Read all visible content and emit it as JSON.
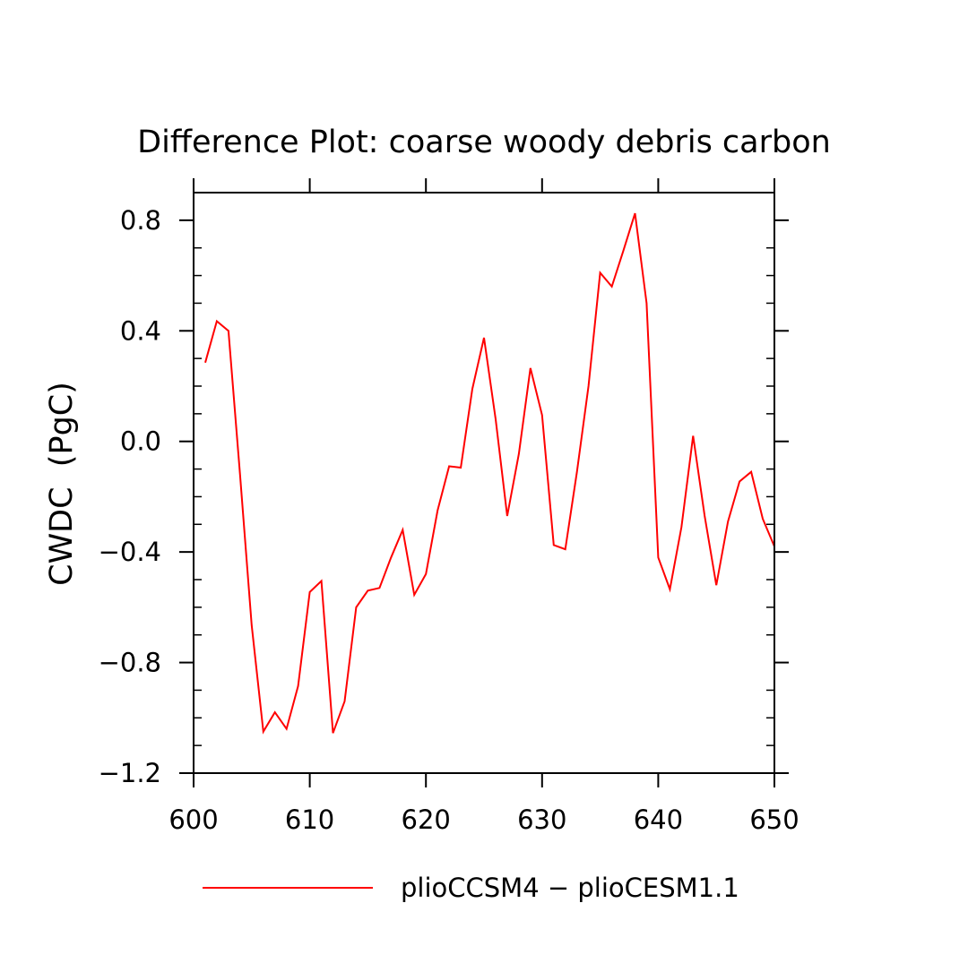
{
  "chart_data": {
    "type": "line",
    "title": "Difference Plot: coarse woody debris carbon",
    "xlabel": "",
    "ylabel": "CWDC  (PgC)",
    "xlim": [
      600,
      650
    ],
    "ylim": [
      -1.2,
      0.9
    ],
    "x_ticks": [
      600,
      610,
      620,
      630,
      640,
      650
    ],
    "x_tick_labels": [
      "600",
      "610",
      "620",
      "630",
      "640",
      "650"
    ],
    "y_ticks": [
      -1.2,
      -0.8,
      -0.4,
      0.0,
      0.4,
      0.8
    ],
    "y_tick_labels": [
      "−1.2",
      "−0.8",
      "−0.4",
      "0.0",
      "0.4",
      "0.8"
    ],
    "grid": false,
    "legend_position": "bottom",
    "series": [
      {
        "name": "plioCCSM4 − plioCESM1.1",
        "color": "#ff0000",
        "x": [
          601,
          602,
          603,
          604,
          605,
          606,
          607,
          608,
          609,
          610,
          611,
          612,
          613,
          614,
          615,
          616,
          617,
          618,
          619,
          620,
          621,
          622,
          623,
          624,
          625,
          626,
          627,
          628,
          629,
          630,
          631,
          632,
          633,
          634,
          635,
          636,
          637,
          638,
          639,
          640,
          641,
          642,
          643,
          644,
          645,
          646,
          647,
          648,
          649,
          650
        ],
        "y": [
          0.285,
          0.435,
          0.4,
          -0.12,
          -0.665,
          -1.05,
          -0.98,
          -1.04,
          -0.885,
          -0.545,
          -0.505,
          -1.055,
          -0.94,
          -0.6,
          -0.54,
          -0.53,
          -0.42,
          -0.32,
          -0.555,
          -0.48,
          -0.25,
          -0.09,
          -0.095,
          0.19,
          0.375,
          0.08,
          -0.27,
          -0.045,
          0.265,
          0.095,
          -0.375,
          -0.39,
          -0.11,
          0.2,
          0.61,
          0.56,
          0.69,
          0.825,
          0.5,
          -0.42,
          -0.535,
          -0.31,
          0.02,
          -0.27,
          -0.52,
          -0.29,
          -0.145,
          -0.11,
          -0.28,
          -0.38
        ]
      }
    ]
  }
}
